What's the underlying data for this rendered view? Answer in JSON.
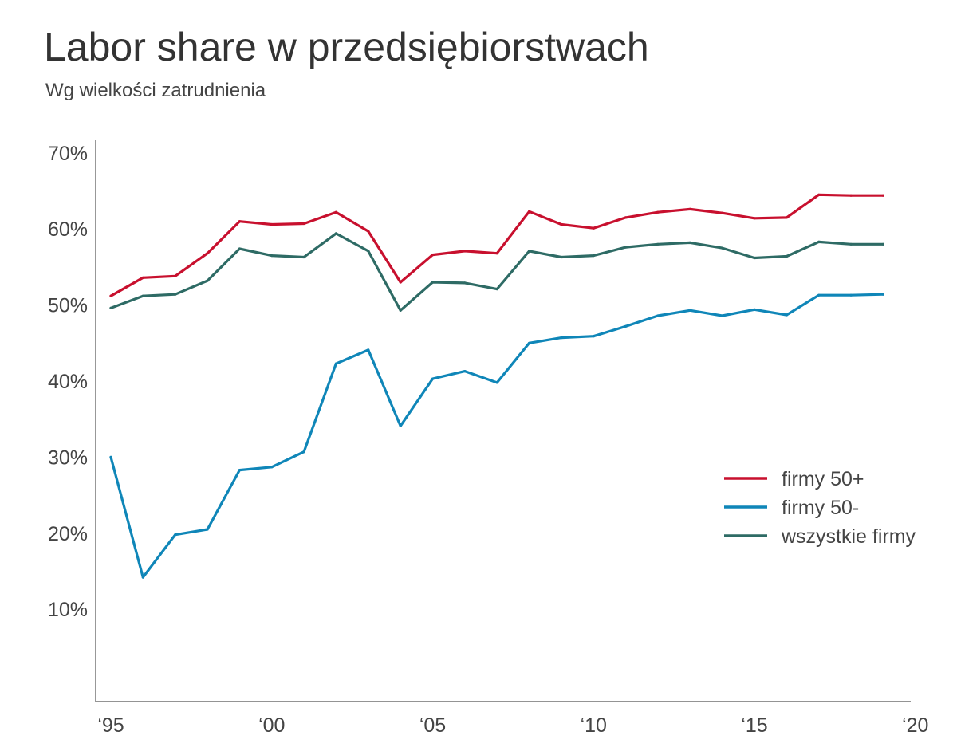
{
  "header": {
    "title": "Labor share w przedsiębiorstwach",
    "subtitle": "Wg wielkości zatrudnienia"
  },
  "chart_data": {
    "type": "line",
    "title": "Labor share w przedsiębiorstwach",
    "subtitle": "Wg wielkości zatrudnienia",
    "xlabel": "",
    "ylabel": "",
    "x": [
      1995,
      1996,
      1997,
      1998,
      1999,
      2000,
      2001,
      2002,
      2003,
      2004,
      2005,
      2006,
      2007,
      2008,
      2009,
      2010,
      2011,
      2012,
      2013,
      2014,
      2015,
      2016,
      2017,
      2018,
      2019
    ],
    "xlim": [
      1995,
      2020
    ],
    "ylim": [
      0,
      70
    ],
    "x_ticks": [
      1995,
      2000,
      2005,
      2010,
      2015,
      2020
    ],
    "x_tick_labels": [
      "‘95",
      "‘00",
      "‘05",
      "‘10",
      "‘15",
      "‘20"
    ],
    "y_ticks": [
      10,
      20,
      30,
      40,
      50,
      60,
      70
    ],
    "y_tick_labels": [
      "10%",
      "20%",
      "30%",
      "40%",
      "50%",
      "60%",
      "70%"
    ],
    "grid": false,
    "legend_position": "right",
    "series": [
      {
        "name": "firmy 50+",
        "color": "#c8102e",
        "values": [
          51.2,
          53.6,
          53.8,
          56.8,
          61.0,
          60.6,
          60.7,
          62.2,
          59.7,
          53.0,
          56.6,
          57.1,
          56.8,
          62.3,
          60.6,
          60.1,
          61.5,
          62.2,
          62.6,
          62.1,
          61.4,
          61.5,
          64.5,
          64.4,
          64.4
        ]
      },
      {
        "name": "firmy 50-",
        "color": "#0f86b8",
        "values": [
          30.0,
          14.2,
          19.8,
          20.5,
          28.3,
          28.7,
          30.7,
          42.3,
          44.1,
          34.1,
          40.3,
          41.3,
          39.8,
          45.0,
          45.7,
          45.9,
          47.2,
          48.6,
          49.3,
          48.6,
          49.4,
          48.7,
          51.3,
          51.3,
          51.4
        ]
      },
      {
        "name": "wszystkie firmy",
        "color": "#2e6b65",
        "values": [
          49.6,
          51.2,
          51.4,
          53.2,
          57.4,
          56.5,
          56.3,
          59.4,
          57.1,
          49.3,
          53.0,
          52.9,
          52.1,
          57.1,
          56.3,
          56.5,
          57.6,
          58.0,
          58.2,
          57.5,
          56.2,
          56.4,
          58.3,
          58.0,
          58.0
        ]
      }
    ]
  }
}
